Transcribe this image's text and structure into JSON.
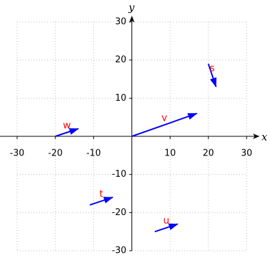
{
  "chart_data": {
    "type": "vector",
    "x_label": "x",
    "y_label": "y",
    "xlim": [
      -30,
      30
    ],
    "ylim": [
      -30,
      30
    ],
    "xticks": [
      -30,
      -20,
      -10,
      10,
      20,
      30
    ],
    "yticks": [
      -30,
      -20,
      -10,
      10,
      20,
      30
    ],
    "grid": true,
    "color": "#0000ff",
    "label_color": "#ff0000",
    "vectors": [
      {
        "name": "v",
        "x": 0,
        "y": 0,
        "dx": 17,
        "dy": 6
      },
      {
        "name": "s",
        "x": 20,
        "y": 19,
        "dx": 2,
        "dy": -6
      },
      {
        "name": "w",
        "x": -20,
        "y": 0,
        "dx": 6,
        "dy": 2
      },
      {
        "name": "t",
        "x": -11,
        "y": -18,
        "dx": 6,
        "dy": 2
      },
      {
        "name": "u",
        "x": 6,
        "y": -25,
        "dx": 6,
        "dy": 2
      }
    ]
  }
}
